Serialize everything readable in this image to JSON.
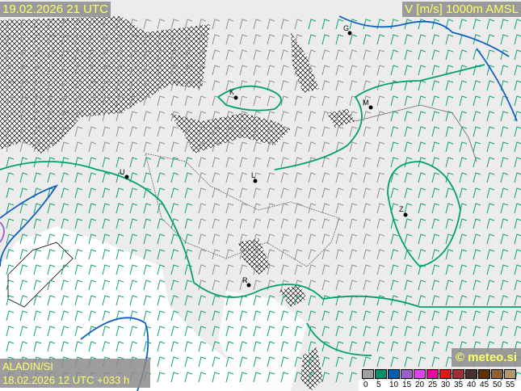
{
  "header": {
    "valid_time": "19.02.2026 21 UTC",
    "parameter": "V [m/s] 1000m AMSL"
  },
  "footer": {
    "model": "ALADIN/SI",
    "run": "18.02.2026 12 UTC +033 h",
    "copyright": "© meteo.si"
  },
  "cities": [
    {
      "label": "K"
    },
    {
      "label": "M"
    },
    {
      "label": "U"
    },
    {
      "label": "L"
    },
    {
      "label": "Z"
    },
    {
      "label": "R"
    },
    {
      "label": "G"
    }
  ],
  "legend": {
    "ticks": [
      "0",
      "5",
      "10",
      "15",
      "20",
      "25",
      "30",
      "35",
      "40",
      "45",
      "50",
      "55"
    ],
    "colors": [
      "#a0a0a0",
      "#00906a",
      "#0060b0",
      "#9a60c8",
      "#e040f0",
      "#f000a0",
      "#e01818",
      "#a03038",
      "#483030",
      "#603000",
      "#906030",
      "#b09868"
    ]
  },
  "colors": {
    "isotach_5": "#00a070",
    "isotach_10": "#1060c0",
    "isotach_15": "#9a60c8",
    "barb_weak": "#909090",
    "barb_strong": "#10a070"
  }
}
